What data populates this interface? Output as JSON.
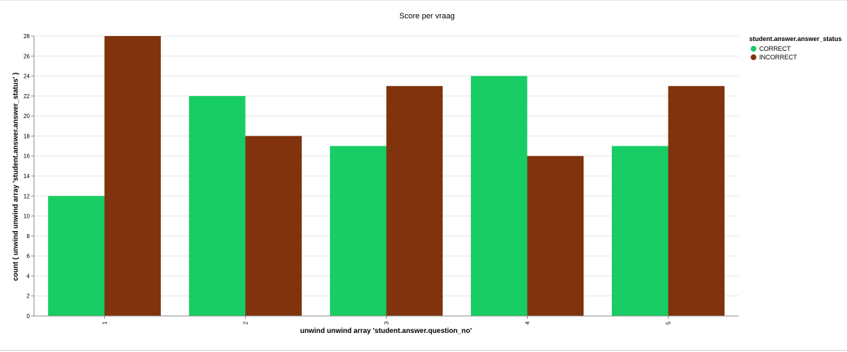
{
  "colors": {
    "CORRECT": "#18cd64",
    "INCORRECT": "#80330d"
  },
  "chart_data": {
    "type": "bar",
    "title": "Score per vraag",
    "xlabel": "unwind unwind array 'student.answer.question_no'",
    "ylabel": "count ( unwind unwind array 'student.answer.answer_status' )",
    "categories": [
      "1",
      "2",
      "3",
      "4",
      "5"
    ],
    "series": [
      {
        "name": "CORRECT",
        "values": [
          12,
          22,
          17,
          24,
          17
        ]
      },
      {
        "name": "INCORRECT",
        "values": [
          28,
          18,
          23,
          16,
          23
        ]
      }
    ],
    "ylim": [
      0,
      28
    ],
    "yticks": [
      0,
      2,
      4,
      6,
      8,
      10,
      12,
      14,
      16,
      18,
      20,
      22,
      24,
      26,
      28
    ],
    "grid": true,
    "legend": {
      "title": "student.answer.answer_status",
      "placement": "right"
    }
  }
}
